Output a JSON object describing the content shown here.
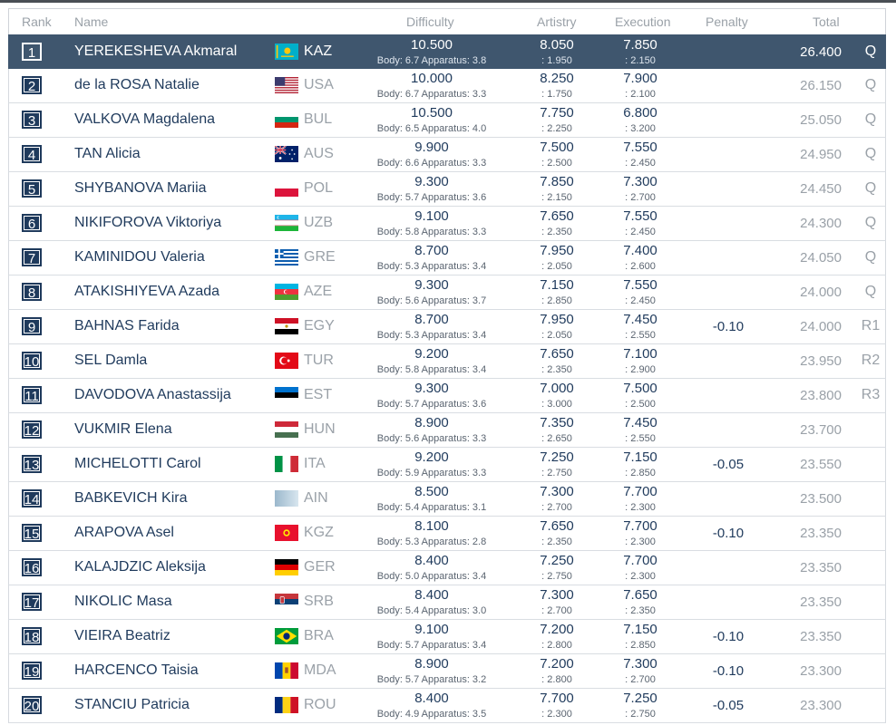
{
  "header": {
    "rank": "Rank",
    "name": "Name",
    "difficulty": "Difficulty",
    "artistry": "Artistry",
    "execution": "Execution",
    "penalty": "Penalty",
    "total": "Total"
  },
  "rows": [
    {
      "rank": "1",
      "name": "YEREKESHEVA Akmaral",
      "noc": "KAZ",
      "flag": "kaz",
      "d": "10.500",
      "dsub": "Body: 6.7 Apparatus: 3.8",
      "a": "8.050",
      "asub": ": 1.950",
      "e": "7.850",
      "esub": ": 2.150",
      "p": "",
      "t": "26.400",
      "q": "Q"
    },
    {
      "rank": "2",
      "name": "de la ROSA Natalie",
      "noc": "USA",
      "flag": "usa",
      "d": "10.000",
      "dsub": "Body: 6.7 Apparatus: 3.3",
      "a": "8.250",
      "asub": ": 1.750",
      "e": "7.900",
      "esub": ": 2.100",
      "p": "",
      "t": "26.150",
      "q": "Q"
    },
    {
      "rank": "3",
      "name": "VALKOVA Magdalena",
      "noc": "BUL",
      "flag": "bul",
      "d": "10.500",
      "dsub": "Body: 6.5 Apparatus: 4.0",
      "a": "7.750",
      "asub": ": 2.250",
      "e": "6.800",
      "esub": ": 3.200",
      "p": "",
      "t": "25.050",
      "q": "Q"
    },
    {
      "rank": "4",
      "name": "TAN Alicia",
      "noc": "AUS",
      "flag": "aus",
      "d": "9.900",
      "dsub": "Body: 6.6 Apparatus: 3.3",
      "a": "7.500",
      "asub": ": 2.500",
      "e": "7.550",
      "esub": ": 2.450",
      "p": "",
      "t": "24.950",
      "q": "Q"
    },
    {
      "rank": "5",
      "name": "SHYBANOVA Mariia",
      "noc": "POL",
      "flag": "pol",
      "d": "9.300",
      "dsub": "Body: 5.7 Apparatus: 3.6",
      "a": "7.850",
      "asub": ": 2.150",
      "e": "7.300",
      "esub": ": 2.700",
      "p": "",
      "t": "24.450",
      "q": "Q"
    },
    {
      "rank": "6",
      "name": "NIKIFOROVA Viktoriya",
      "noc": "UZB",
      "flag": "uzb",
      "d": "9.100",
      "dsub": "Body: 5.8 Apparatus: 3.3",
      "a": "7.650",
      "asub": ": 2.350",
      "e": "7.550",
      "esub": ": 2.450",
      "p": "",
      "t": "24.300",
      "q": "Q"
    },
    {
      "rank": "7",
      "name": "KAMINIDOU Valeria",
      "noc": "GRE",
      "flag": "gre",
      "d": "8.700",
      "dsub": "Body: 5.3 Apparatus: 3.4",
      "a": "7.950",
      "asub": ": 2.050",
      "e": "7.400",
      "esub": ": 2.600",
      "p": "",
      "t": "24.050",
      "q": "Q"
    },
    {
      "rank": "8",
      "name": "ATAKISHIYEVA Azada",
      "noc": "AZE",
      "flag": "aze",
      "d": "9.300",
      "dsub": "Body: 5.6 Apparatus: 3.7",
      "a": "7.150",
      "asub": ": 2.850",
      "e": "7.550",
      "esub": ": 2.450",
      "p": "",
      "t": "24.000",
      "q": "Q"
    },
    {
      "rank": "9",
      "name": "BAHNAS Farida",
      "noc": "EGY",
      "flag": "egy",
      "d": "8.700",
      "dsub": "Body: 5.3 Apparatus: 3.4",
      "a": "7.950",
      "asub": ": 2.050",
      "e": "7.450",
      "esub": ": 2.550",
      "p": "-0.10",
      "t": "24.000",
      "q": "R1"
    },
    {
      "rank": "10",
      "name": "SEL Damla",
      "noc": "TUR",
      "flag": "tur",
      "d": "9.200",
      "dsub": "Body: 5.8 Apparatus: 3.4",
      "a": "7.650",
      "asub": ": 2.350",
      "e": "7.100",
      "esub": ": 2.900",
      "p": "",
      "t": "23.950",
      "q": "R2"
    },
    {
      "rank": "11",
      "name": "DAVODOVA Anastassija",
      "noc": "EST",
      "flag": "est",
      "d": "9.300",
      "dsub": "Body: 5.7 Apparatus: 3.6",
      "a": "7.000",
      "asub": ": 3.000",
      "e": "7.500",
      "esub": ": 2.500",
      "p": "",
      "t": "23.800",
      "q": "R3"
    },
    {
      "rank": "12",
      "name": "VUKMIR Elena",
      "noc": "HUN",
      "flag": "hun",
      "d": "8.900",
      "dsub": "Body: 5.6 Apparatus: 3.3",
      "a": "7.350",
      "asub": ": 2.650",
      "e": "7.450",
      "esub": ": 2.550",
      "p": "",
      "t": "23.700",
      "q": ""
    },
    {
      "rank": "13",
      "name": "MICHELOTTI Carol",
      "noc": "ITA",
      "flag": "ita",
      "d": "9.200",
      "dsub": "Body: 5.9 Apparatus: 3.3",
      "a": "7.250",
      "asub": ": 2.750",
      "e": "7.150",
      "esub": ": 2.850",
      "p": "-0.05",
      "t": "23.550",
      "q": ""
    },
    {
      "rank": "14",
      "name": "BABKEVICH Kira",
      "noc": "AIN",
      "flag": "ain",
      "d": "8.500",
      "dsub": "Body: 5.4 Apparatus: 3.1",
      "a": "7.300",
      "asub": ": 2.700",
      "e": "7.700",
      "esub": ": 2.300",
      "p": "",
      "t": "23.500",
      "q": ""
    },
    {
      "rank": "15",
      "name": "ARAPOVA Asel",
      "noc": "KGZ",
      "flag": "kgz",
      "d": "8.100",
      "dsub": "Body: 5.3 Apparatus: 2.8",
      "a": "7.650",
      "asub": ": 2.350",
      "e": "7.700",
      "esub": ": 2.300",
      "p": "-0.10",
      "t": "23.350",
      "q": ""
    },
    {
      "rank": "16",
      "name": "KALAJDZIC Aleksija",
      "noc": "GER",
      "flag": "ger",
      "d": "8.400",
      "dsub": "Body: 5.0 Apparatus: 3.4",
      "a": "7.250",
      "asub": ": 2.750",
      "e": "7.700",
      "esub": ": 2.300",
      "p": "",
      "t": "23.350",
      "q": ""
    },
    {
      "rank": "17",
      "name": "NIKOLIC Masa",
      "noc": "SRB",
      "flag": "srb",
      "d": "8.400",
      "dsub": "Body: 5.4 Apparatus: 3.0",
      "a": "7.300",
      "asub": ": 2.700",
      "e": "7.650",
      "esub": ": 2.350",
      "p": "",
      "t": "23.350",
      "q": ""
    },
    {
      "rank": "18",
      "name": "VIEIRA Beatriz",
      "noc": "BRA",
      "flag": "bra",
      "d": "9.100",
      "dsub": "Body: 5.7 Apparatus: 3.4",
      "a": "7.200",
      "asub": ": 2.800",
      "e": "7.150",
      "esub": ": 2.850",
      "p": "-0.10",
      "t": "23.350",
      "q": ""
    },
    {
      "rank": "19",
      "name": "HARCENCO Taisia",
      "noc": "MDA",
      "flag": "mda",
      "d": "8.900",
      "dsub": "Body: 5.7 Apparatus: 3.2",
      "a": "7.200",
      "asub": ": 2.800",
      "e": "7.300",
      "esub": ": 2.700",
      "p": "-0.10",
      "t": "23.300",
      "q": ""
    },
    {
      "rank": "20",
      "name": "STANCIU Patricia",
      "noc": "ROU",
      "flag": "rou",
      "d": "8.400",
      "dsub": "Body: 4.9 Apparatus: 3.5",
      "a": "7.700",
      "asub": ": 2.300",
      "e": "7.250",
      "esub": ": 2.750",
      "p": "-0.05",
      "t": "23.300",
      "q": ""
    }
  ],
  "colors": {
    "highlight_row": "#3f566e",
    "text": "#1f3a5c",
    "muted": "#9aa1a8"
  }
}
